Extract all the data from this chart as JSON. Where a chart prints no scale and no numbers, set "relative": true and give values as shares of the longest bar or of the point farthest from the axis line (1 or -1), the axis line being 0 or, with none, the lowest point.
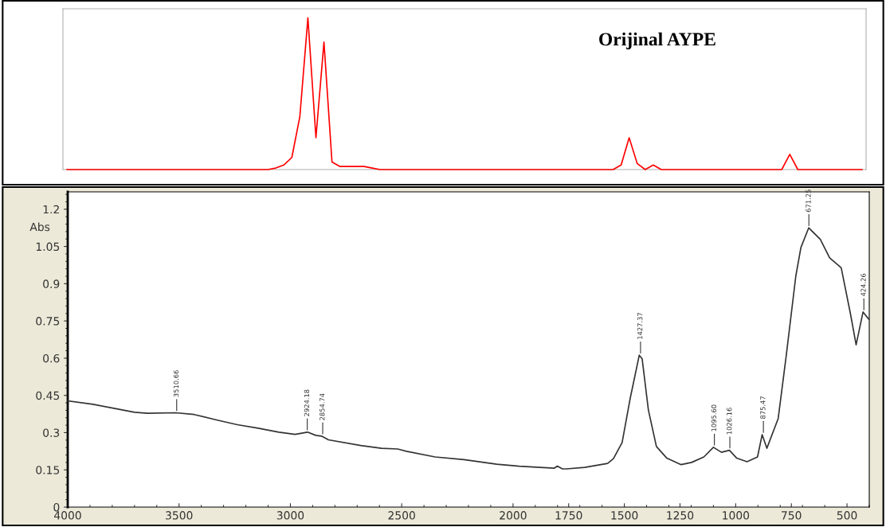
{
  "chart_data": [
    {
      "type": "line",
      "relative": true,
      "title": "Orijinal AYPE",
      "color": "#ff0000",
      "categories": [
        null,
        null,
        null,
        null,
        null,
        null,
        null,
        null,
        null,
        null,
        null,
        null,
        null,
        null,
        null,
        null,
        null,
        null,
        null,
        null,
        null,
        null,
        null,
        null,
        null,
        null,
        null,
        null,
        null,
        null,
        null,
        null,
        null,
        null,
        null,
        null,
        null,
        null,
        null,
        null,
        null,
        null,
        null,
        null,
        null,
        null,
        null,
        null,
        null,
        null,
        null,
        null,
        null,
        null,
        null,
        null,
        null,
        null,
        null,
        null,
        null,
        null,
        null,
        null,
        null,
        null,
        null,
        null,
        null,
        null,
        null,
        null,
        null,
        null,
        null,
        null,
        null,
        null,
        null,
        null,
        null,
        null,
        null,
        null,
        null,
        null,
        null,
        null,
        null,
        null,
        null,
        null,
        null,
        null,
        null,
        null,
        null,
        null,
        null,
        null
      ],
      "values": [
        0,
        0,
        0,
        0,
        0,
        0,
        0,
        0,
        0,
        0,
        0,
        0,
        0,
        0,
        0,
        0,
        0,
        0,
        0,
        0,
        0,
        0,
        0,
        0,
        0,
        0,
        0.01,
        0.03,
        0.08,
        0.35,
        1.0,
        0.21,
        0.84,
        0.05,
        0.02,
        0.02,
        0.02,
        0.02,
        0.01,
        0,
        0,
        0,
        0,
        0,
        0,
        0,
        0,
        0,
        0,
        0,
        0,
        0,
        0,
        0,
        0,
        0,
        0,
        0,
        0,
        0,
        0,
        0,
        0,
        0,
        0,
        0,
        0,
        0,
        0,
        0.03,
        0.21,
        0.04,
        0,
        0.03,
        0,
        0,
        0,
        0,
        0,
        0,
        0,
        0,
        0,
        0,
        0,
        0,
        0,
        0,
        0,
        0,
        0.1,
        0,
        0,
        0,
        0,
        0,
        0,
        0,
        0,
        0
      ]
    },
    {
      "type": "line",
      "color": "#333333",
      "grid": false,
      "ylabel": "Abs",
      "x": [
        4000,
        3886,
        3793,
        3700,
        3642,
        3515,
        3432,
        3332,
        3238,
        3145,
        3052,
        2979,
        2923,
        2886,
        2860,
        2829,
        2684,
        2591,
        2518,
        2479,
        2350,
        2220,
        2073,
        1972,
        1879,
        1814,
        1801,
        1778,
        1760,
        1678,
        1575,
        1549,
        1510,
        1474,
        1433,
        1420,
        1392,
        1356,
        1309,
        1245,
        1198,
        1143,
        1100,
        1064,
        1028,
        995,
        949,
        902,
        881,
        860,
        809,
        773,
        730,
        707,
        672,
        620,
        578,
        526,
        485,
        459,
        428,
        402
      ],
      "values": [
        0.428,
        0.414,
        0.398,
        0.382,
        0.378,
        0.38,
        0.373,
        0.351,
        0.332,
        0.318,
        0.302,
        0.293,
        0.302,
        0.289,
        0.286,
        0.271,
        0.248,
        0.237,
        0.234,
        0.225,
        0.202,
        0.191,
        0.173,
        0.165,
        0.16,
        0.157,
        0.165,
        0.154,
        0.154,
        0.16,
        0.176,
        0.195,
        0.26,
        0.437,
        0.612,
        0.597,
        0.391,
        0.244,
        0.197,
        0.171,
        0.18,
        0.202,
        0.241,
        0.221,
        0.229,
        0.197,
        0.183,
        0.202,
        0.292,
        0.237,
        0.357,
        0.61,
        0.93,
        1.046,
        1.125,
        1.079,
        1.004,
        0.964,
        0.781,
        0.654,
        0.786,
        0.757
      ],
      "xlim": [
        4000,
        400
      ],
      "xticks": [
        4000,
        3500,
        3000,
        2500,
        2000,
        1750,
        1500,
        1250,
        1000,
        750,
        500
      ],
      "ylim": [
        0,
        1.27
      ],
      "yticks": [
        0,
        0.15,
        0.3,
        0.45,
        0.6,
        0.75,
        0.9,
        1.05,
        1.2
      ],
      "annotations": [
        {
          "text": "3510.66",
          "x": 3510.66,
          "y": 0.38
        },
        {
          "text": "2924.18",
          "x": 2924.18,
          "y": 0.302
        },
        {
          "text": "2854.74",
          "x": 2854.74,
          "y": 0.286
        },
        {
          "text": "1427.37",
          "x": 1427.37,
          "y": 0.612
        },
        {
          "text": "1095.60",
          "x": 1095.6,
          "y": 0.241
        },
        {
          "text": "1026.16",
          "x": 1026.16,
          "y": 0.229
        },
        {
          "text": "875.47",
          "x": 875.47,
          "y": 0.292
        },
        {
          "text": "671.25",
          "x": 671.25,
          "y": 1.125
        },
        {
          "text": "424.26",
          "x": 424.26,
          "y": 0.786
        }
      ]
    }
  ]
}
